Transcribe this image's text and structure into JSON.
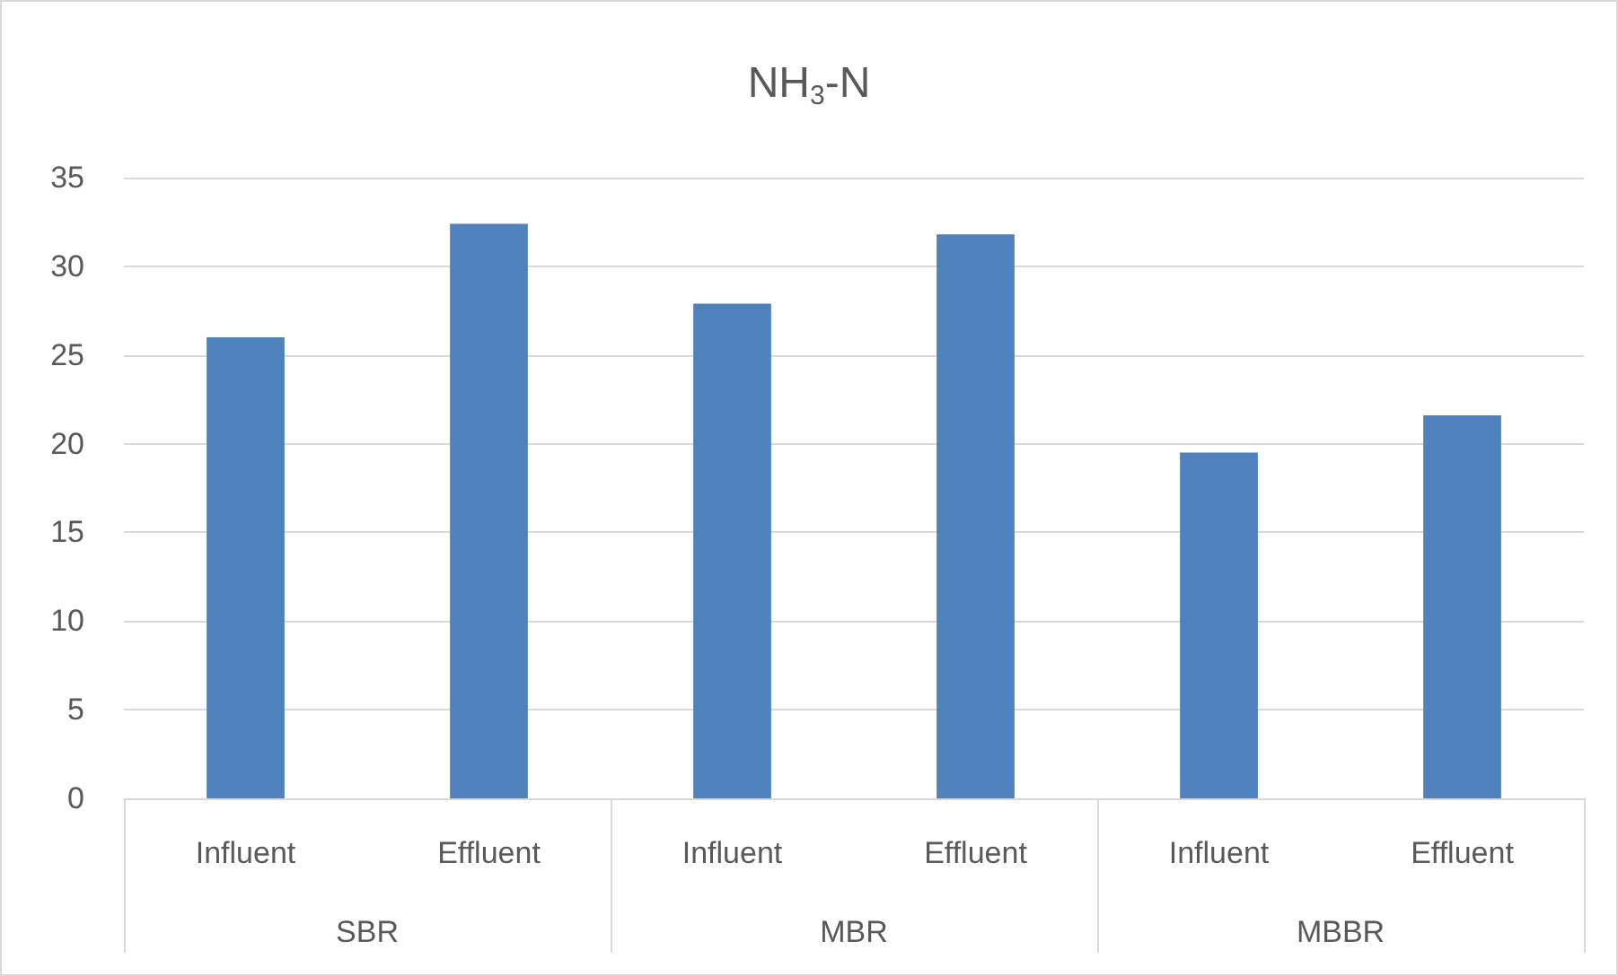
{
  "chart_data": {
    "type": "bar",
    "title": "NH$_{3}$-N",
    "categories": [
      "Influent",
      "Effluent",
      "Influent",
      "Effluent",
      "Influent",
      "Effluent"
    ],
    "values": [
      26,
      32.4,
      27.9,
      31.8,
      19.5,
      21.6
    ],
    "color": "#4f81bd",
    "ylim": [
      0,
      35
    ],
    "yticks": [
      0,
      5,
      10,
      15,
      20,
      25,
      30,
      35
    ],
    "grid": "y",
    "annotations": [
      "SBR",
      "MBR",
      "MBBR"
    ]
  }
}
